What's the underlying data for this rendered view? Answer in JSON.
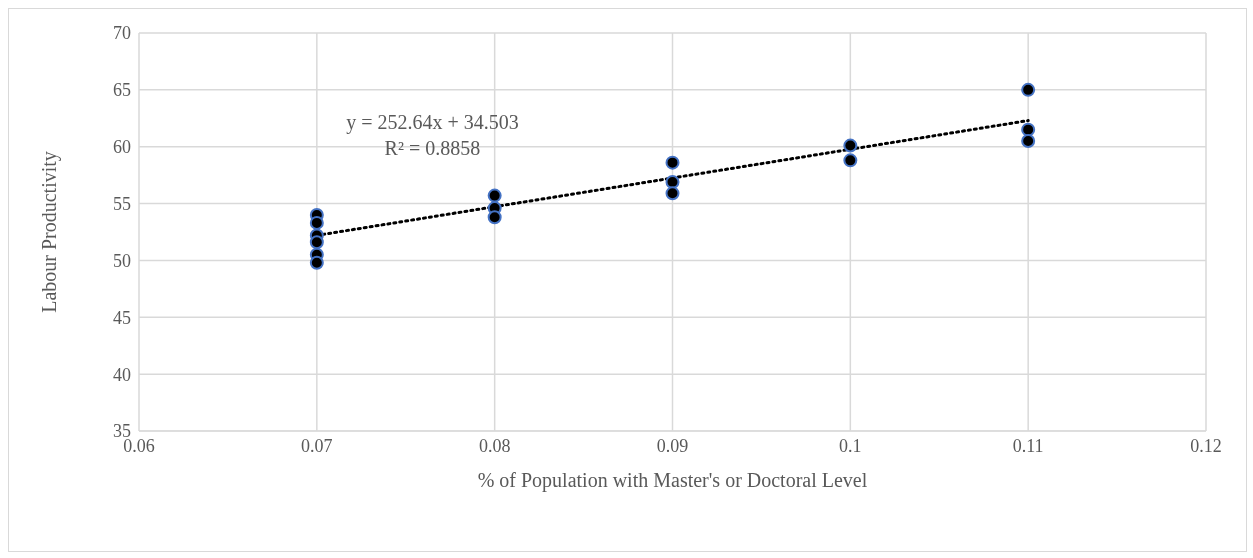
{
  "chart_data": {
    "type": "scatter",
    "xlabel": "% of Population with Master's or Doctoral Level",
    "ylabel": "Labour Productivity",
    "xlim": [
      0.06,
      0.12
    ],
    "xticks": [
      0.06,
      0.07,
      0.08,
      0.09,
      0.1,
      0.11,
      0.12
    ],
    "ylim": [
      35,
      70
    ],
    "yticks": [
      35,
      40,
      45,
      50,
      55,
      60,
      65,
      70
    ],
    "grid": true,
    "marker": "circle",
    "legend": false,
    "annotations": [
      "y = 252.64x + 34.503",
      "R² = 0.8858"
    ],
    "series": [
      {
        "type": "scatter",
        "color": "#000000",
        "x": [
          0.07,
          0.07,
          0.07,
          0.07,
          0.07,
          0.07,
          0.08,
          0.08,
          0.08,
          0.09,
          0.09,
          0.09,
          0.1,
          0.1,
          0.11,
          0.11,
          0.11
        ],
        "values": [
          54.0,
          53.3,
          52.2,
          51.6,
          50.5,
          49.8,
          55.7,
          54.6,
          53.8,
          58.6,
          56.9,
          55.9,
          60.1,
          58.8,
          65.0,
          61.5,
          60.5
        ]
      },
      {
        "type": "line",
        "color": "#000000",
        "line_style": "dotted",
        "marker": "none",
        "x": [
          0.07,
          0.11
        ],
        "values": [
          52.2,
          62.3
        ]
      }
    ]
  }
}
